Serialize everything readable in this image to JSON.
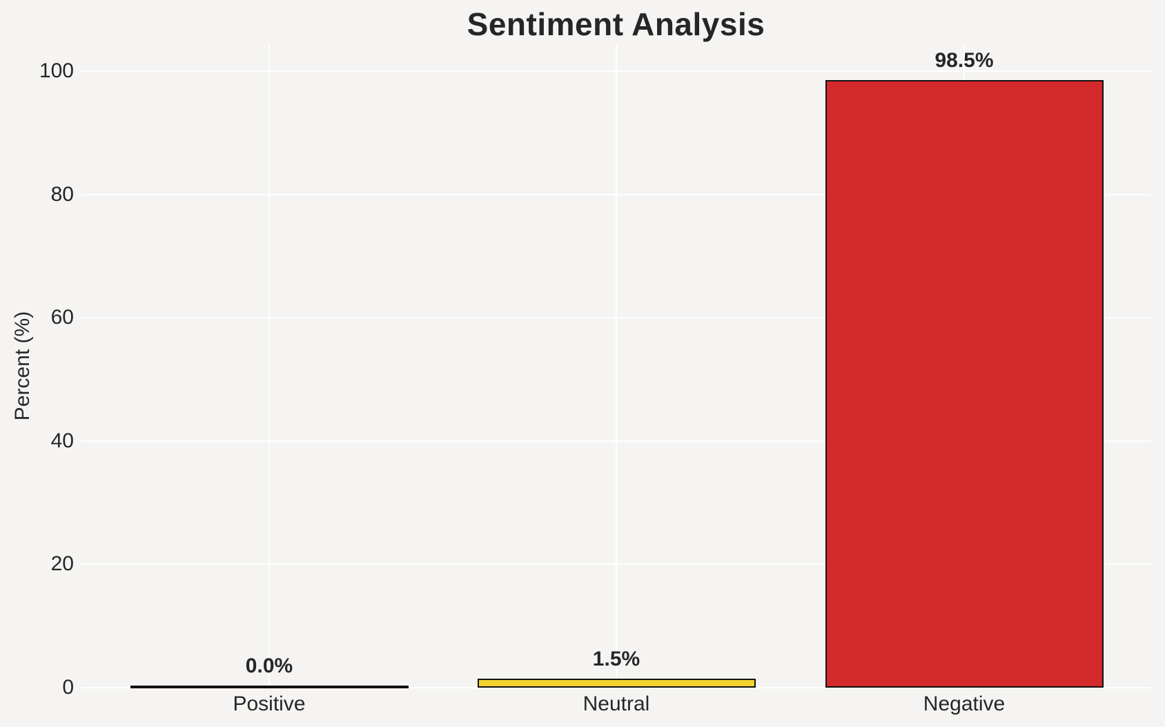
{
  "chart_data": {
    "type": "bar",
    "title": "Sentiment Analysis",
    "ylabel": "Percent (%)",
    "xlabel": "",
    "categories": [
      "Positive",
      "Neutral",
      "Negative"
    ],
    "values": [
      0.0,
      1.5,
      98.5
    ],
    "value_labels": [
      "0.0%",
      "1.5%",
      "98.5%"
    ],
    "yticks": [
      "0",
      "20",
      "40",
      "60",
      "80",
      "100"
    ],
    "ytick_values": [
      0,
      20,
      40,
      60,
      80,
      100
    ],
    "ylim": [
      0,
      100
    ],
    "grid": true,
    "legend": "none",
    "colors": {
      "bar_fills": [
        "#8a8a8a",
        "#F5D32E",
        "#D42A2B"
      ],
      "bar_edge": "#111111",
      "background": "#f5f4f2",
      "gridline": "#ffffff",
      "text": "#262626"
    }
  }
}
